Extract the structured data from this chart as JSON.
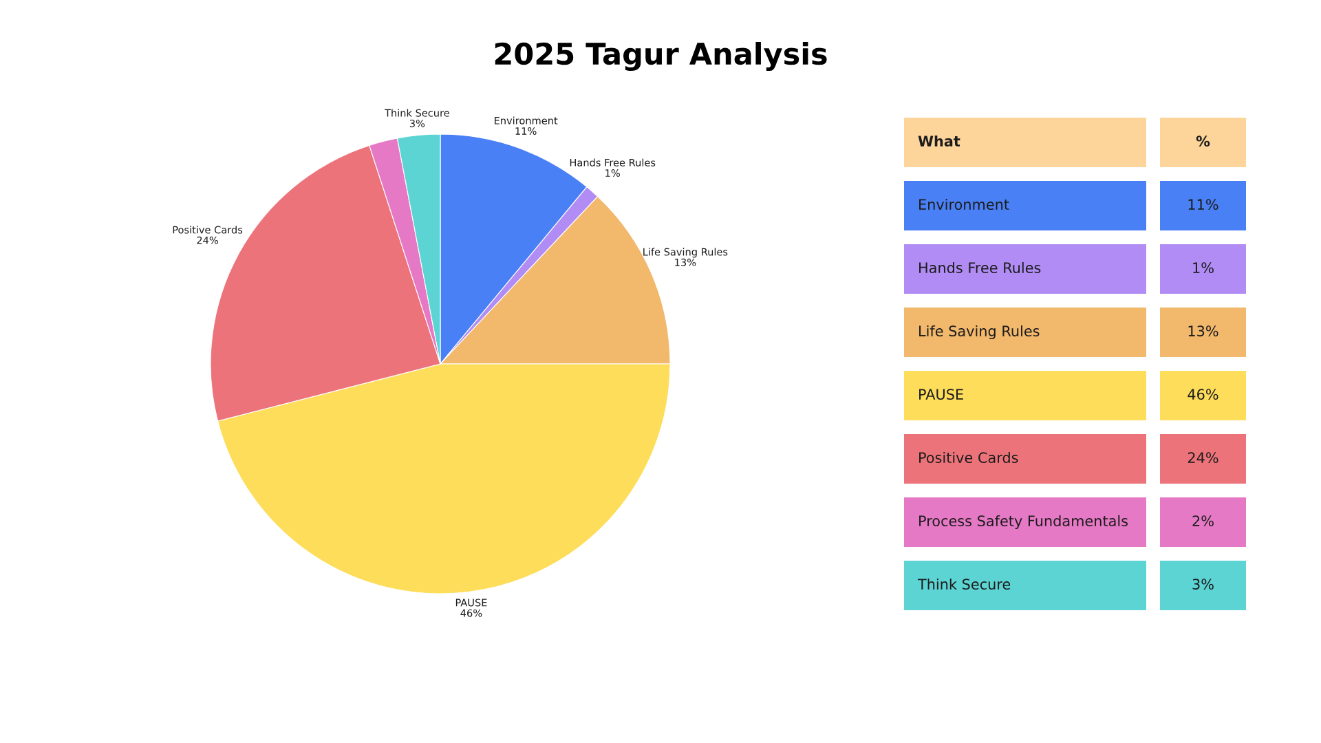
{
  "chart_data": [
    {
      "type": "pie",
      "title": "2025 Tagur Analysis",
      "categories": [
        "Environment",
        "Hands Free Rules",
        "Life Saving Rules",
        "PAUSE",
        "Positive Cards",
        null,
        "Think Secure"
      ],
      "values": [
        11,
        1,
        13,
        46,
        24,
        2,
        3
      ],
      "colors": [
        "#4a80f6",
        "#b08cf4",
        "#f2b86c",
        "#fddd5a",
        "#ed737a",
        "#e679c5",
        "#5bd4d3"
      ],
      "value_labels": [
        "11%",
        "1%",
        "13%",
        "46%",
        "24%",
        null,
        "3%"
      ]
    },
    {
      "type": "other",
      "annotations": [
        "What",
        "%"
      ],
      "categories": [
        "Environment",
        "Hands Free Rules",
        "Life Saving Rules",
        "PAUSE",
        "Positive Cards",
        "Process Safety Fundamentals",
        "Think Secure"
      ],
      "colors": [
        "#4a80f6",
        "#b08cf4",
        "#f2b86c",
        "#fddd5a",
        "#ed737a",
        "#e679c5",
        "#5bd4d3"
      ],
      "value_labels": [
        "11%",
        "1%",
        "13%",
        "46%",
        "24%",
        "2%",
        "3%"
      ]
    }
  ]
}
